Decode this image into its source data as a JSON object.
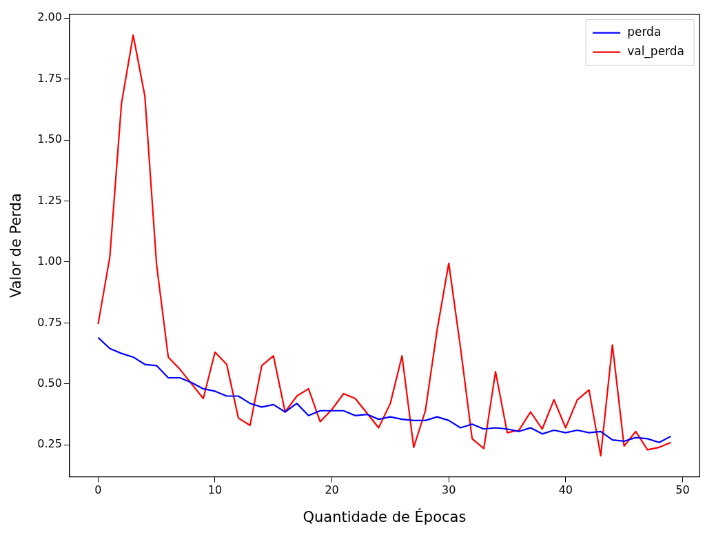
{
  "chart_data": {
    "type": "line",
    "xlabel": "Quantidade de Épocas",
    "ylabel": "Valor de Perda",
    "x": [
      0,
      1,
      2,
      3,
      4,
      5,
      6,
      7,
      8,
      9,
      10,
      11,
      12,
      13,
      14,
      15,
      16,
      17,
      18,
      19,
      20,
      21,
      22,
      23,
      24,
      25,
      26,
      27,
      28,
      29,
      30,
      31,
      32,
      33,
      34,
      35,
      36,
      37,
      38,
      39,
      40,
      41,
      42,
      43,
      44,
      45,
      46,
      47,
      48,
      49
    ],
    "series": [
      {
        "name": "perda",
        "color": "#0000ff",
        "values": [
          0.69,
          0.645,
          0.625,
          0.61,
          0.58,
          0.575,
          0.525,
          0.525,
          0.505,
          0.48,
          0.47,
          0.45,
          0.45,
          0.42,
          0.405,
          0.415,
          0.385,
          0.42,
          0.37,
          0.39,
          0.39,
          0.39,
          0.37,
          0.375,
          0.355,
          0.365,
          0.355,
          0.35,
          0.35,
          0.365,
          0.35,
          0.32,
          0.335,
          0.315,
          0.32,
          0.315,
          0.305,
          0.32,
          0.295,
          0.31,
          0.3,
          0.31,
          0.3,
          0.305,
          0.27,
          0.265,
          0.28,
          0.275,
          0.26,
          0.285
        ]
      },
      {
        "name": "val_perda",
        "color": "#ff0000",
        "values": [
          0.745,
          1.02,
          1.65,
          1.93,
          1.68,
          0.99,
          0.61,
          0.56,
          0.5,
          0.44,
          0.63,
          0.58,
          0.36,
          0.33,
          0.575,
          0.615,
          0.385,
          0.45,
          0.48,
          0.345,
          0.395,
          0.46,
          0.44,
          0.38,
          0.32,
          0.42,
          0.615,
          0.24,
          0.39,
          0.72,
          0.995,
          0.65,
          0.275,
          0.235,
          0.55,
          0.3,
          0.31,
          0.385,
          0.315,
          0.435,
          0.32,
          0.435,
          0.475,
          0.205,
          0.66,
          0.245,
          0.305,
          0.23,
          0.24,
          0.26
        ]
      }
    ],
    "xlim": [
      -2.45,
      51.45
    ],
    "xticks": [
      0,
      10,
      20,
      30,
      40,
      50
    ],
    "ylim": [
      0.119,
      2.016
    ],
    "yticks": [
      {
        "value": 0.25,
        "label": "0.25"
      },
      {
        "value": 0.5,
        "label": "0.50"
      },
      {
        "value": 0.75,
        "label": "0.75"
      },
      {
        "value": 1,
        "label": "1.00"
      },
      {
        "value": 1.25,
        "label": "1.25"
      },
      {
        "value": 1.5,
        "label": "1.50"
      },
      {
        "value": 1.75,
        "label": "1.75"
      },
      {
        "value": 2,
        "label": "2.00"
      }
    ],
    "grid": false,
    "legend": "top right",
    "marker": "none",
    "line_style": "solid"
  }
}
